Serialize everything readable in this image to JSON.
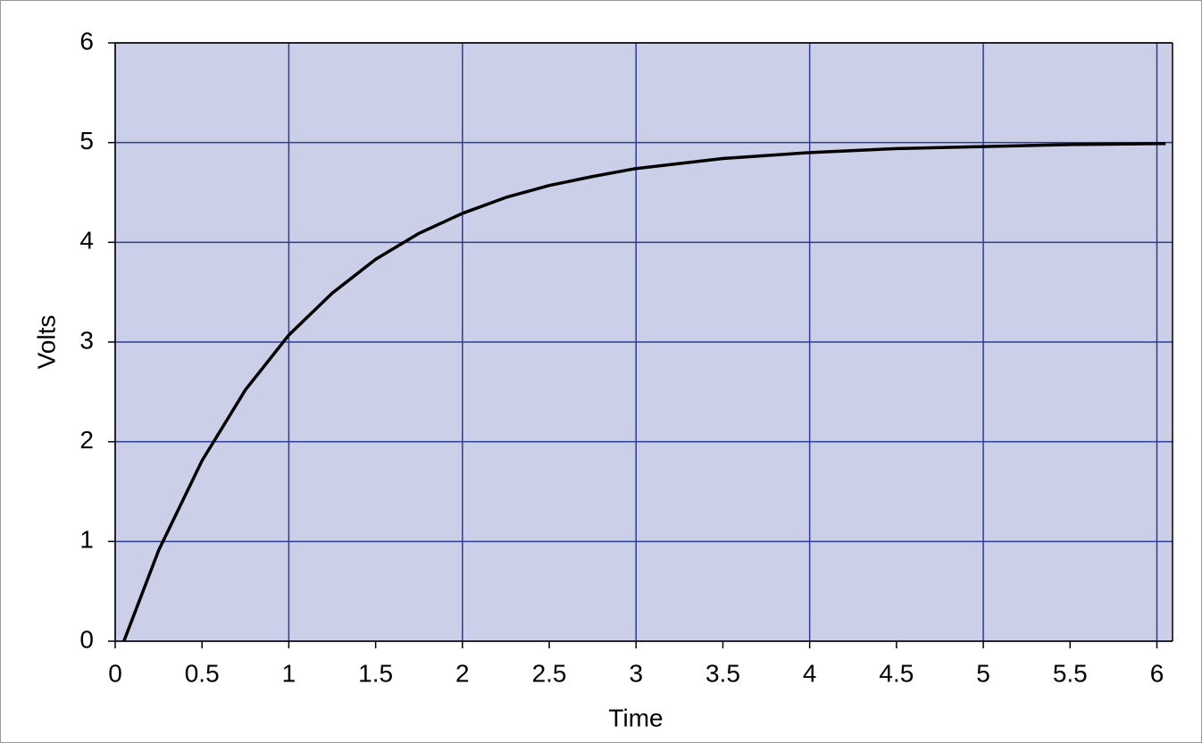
{
  "chart_data": {
    "type": "line",
    "x_label": "Time",
    "y_label": "Volts",
    "x": [
      0.05,
      0.25,
      0.5,
      0.75,
      1,
      1.25,
      1.5,
      1.75,
      2,
      2.25,
      2.5,
      2.75,
      3,
      3.5,
      4,
      4.5,
      5,
      5.5,
      6.05
    ],
    "series": [
      {
        "color": "#000000",
        "values": [
          0,
          0.91,
          1.81,
          2.52,
          3.07,
          3.49,
          3.83,
          4.09,
          4.29,
          4.45,
          4.57,
          4.66,
          4.74,
          4.84,
          4.9,
          4.94,
          4.96,
          4.98,
          4.99
        ]
      }
    ],
    "xlim": [
      0,
      6.09
    ],
    "ylim": [
      0,
      6
    ],
    "xticks": [
      0,
      0.5,
      1,
      1.5,
      2,
      2.5,
      3,
      3.5,
      4,
      4.5,
      5,
      5.5,
      6
    ],
    "yticks": [
      0,
      1,
      2,
      3,
      4,
      5,
      6
    ],
    "grid": true,
    "plot_background": "#cbcfe8",
    "grid_color": "#2c3d96"
  }
}
